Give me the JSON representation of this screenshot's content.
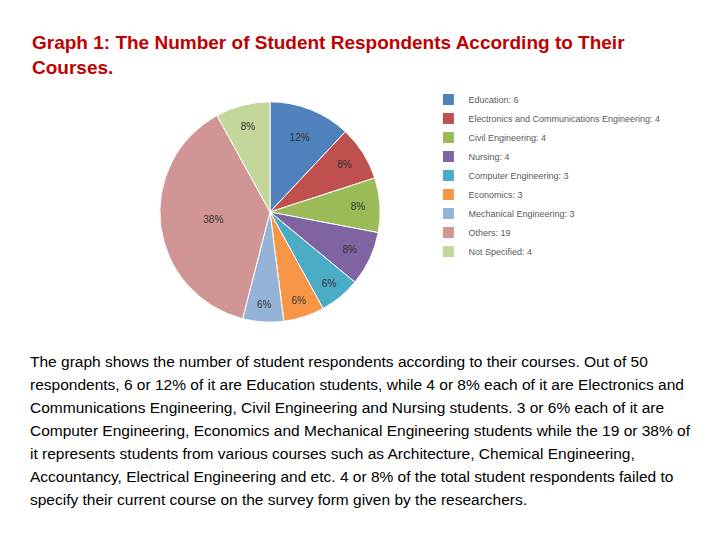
{
  "chart_data": {
    "type": "pie",
    "title": "Graph 1: The Number of Student Respondents According to Their Courses.",
    "categories": [
      "Education: 6",
      "Electronics and Communications Engineering: 4",
      "Civil Engineering: 4",
      "Nursing: 4",
      "Computer Engineering: 3",
      "Economics: 3",
      "Mechanical Engineering: 3",
      "Others: 19",
      "Not Specified: 4"
    ],
    "values": [
      12,
      8,
      8,
      8,
      6,
      6,
      6,
      38,
      8
    ],
    "value_labels": [
      "12%",
      "8%",
      "8%",
      "8%",
      "6%",
      "6%",
      "6%",
      "38%",
      "8%"
    ],
    "colors": [
      "#4F81BD",
      "#C0504D",
      "#9BBB59",
      "#8064A2",
      "#4BACC6",
      "#F79646",
      "#95B3D7",
      "#D09594",
      "#C3D69B"
    ],
    "data_labels": true,
    "legend": "right"
  },
  "caption": "The graph shows the number of student respondents according to their courses. Out of 50 respondents, 6 or 12% of it are Education students, while 4 or 8% each of it are Electronics and Communications Engineering, Civil Engineering and Nursing students. 3 or 6% each of it are Computer Engineering, Economics and Mechanical Engineering students while the 19 or 38% of it represents students from various courses such as Architecture, Chemical Engineering, Accountancy, Electrical Engineering and etc. 4 or 8% of the total student respondents failed to specify their current course on the survey form given by the researchers."
}
